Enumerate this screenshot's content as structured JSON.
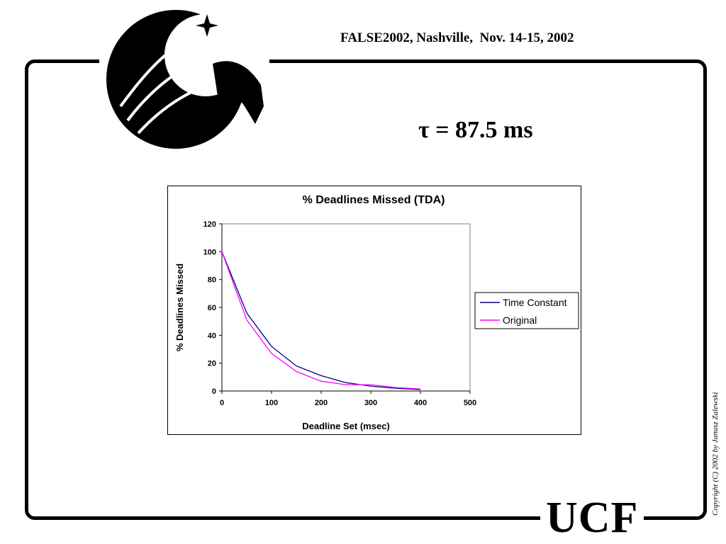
{
  "header": {
    "conference": "FALSE2002, Nashville,  Nov. 14-15, 2002"
  },
  "slide": {
    "title": "τ = 87.5 ms"
  },
  "footer": {
    "logo_text": "UCF",
    "copyright": "Copyright (C) 2002 by Janusz Zalewski"
  },
  "chart_data": {
    "type": "line",
    "title": "% Deadlines Missed (TDA)",
    "xlabel": "Deadline Set (msec)",
    "ylabel": "% Deadlines Missed",
    "xlim": [
      0,
      500
    ],
    "ylim": [
      0,
      120
    ],
    "xticks": [
      0,
      100,
      200,
      300,
      400,
      500
    ],
    "yticks": [
      0,
      20,
      40,
      60,
      80,
      100,
      120
    ],
    "grid": false,
    "legend_position": "right",
    "series": [
      {
        "name": "Time Constant",
        "color": "#000080",
        "x": [
          0,
          50,
          100,
          150,
          200,
          250,
          300,
          350,
          400
        ],
        "y": [
          100,
          56,
          32,
          18,
          11,
          6,
          3.5,
          2,
          1
        ]
      },
      {
        "name": "Original",
        "color": "#ff00ff",
        "x": [
          0,
          50,
          100,
          150,
          200,
          250,
          300,
          350,
          400
        ],
        "y": [
          100,
          51,
          27,
          14,
          7,
          4.5,
          4.5,
          2.5,
          1.5
        ]
      }
    ]
  }
}
